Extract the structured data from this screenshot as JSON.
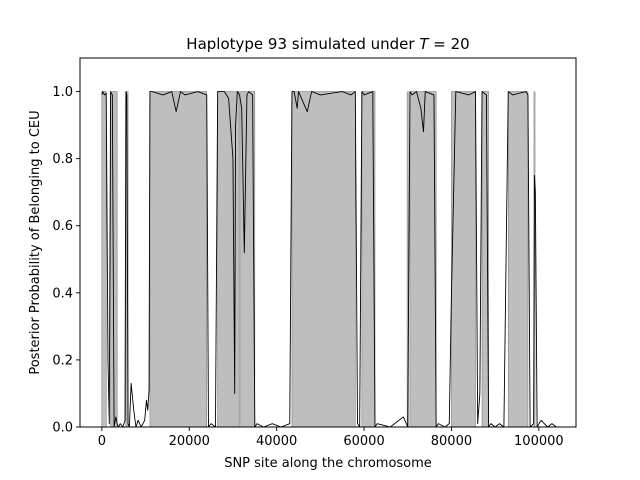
{
  "chart_data": {
    "type": "area",
    "title": "Haplotype 93 simulated under T = 20",
    "title_parts": {
      "prefix": "Haplotype 93 simulated under ",
      "italic": "T",
      "suffix": " =  20"
    },
    "xlabel": "SNP site along the chromosome",
    "ylabel": "Posterior Probability of Belonging to CEU",
    "xlim": [
      -5000,
      108500
    ],
    "ylim": [
      0.0,
      1.1
    ],
    "xticks": [
      0,
      20000,
      40000,
      60000,
      80000,
      100000
    ],
    "xtick_labels": [
      "0",
      "20000",
      "40000",
      "60000",
      "80000",
      "100000"
    ],
    "yticks": [
      0.0,
      0.2,
      0.4,
      0.6,
      0.8,
      1.0
    ],
    "ytick_labels": [
      "0.0",
      "0.2",
      "0.4",
      "0.6",
      "0.8",
      "1.0"
    ],
    "grid": false,
    "legend": "none",
    "colors": {
      "shaded_segments": "#bebebe",
      "segment_edge": "#7f7f7f",
      "posterior_line": "#000000",
      "marker_lines": "#a9a9a9"
    },
    "shaded_segments": [
      {
        "start": 0,
        "end": 1000
      },
      {
        "start": 2000,
        "end": 3500
      },
      {
        "start": 5500,
        "end": 6000
      },
      {
        "start": 11000,
        "end": 24000
      },
      {
        "start": 26500,
        "end": 35000
      },
      {
        "start": 43500,
        "end": 58000
      },
      {
        "start": 59500,
        "end": 62500
      },
      {
        "start": 70500,
        "end": 76500
      },
      {
        "start": 80000,
        "end": 85500
      },
      {
        "start": 87000,
        "end": 88500
      },
      {
        "start": 93000,
        "end": 97500
      }
    ],
    "marker_lines": [
      31500,
      70000,
      99000
    ],
    "posterior": {
      "x": [
        0,
        200,
        600,
        1000,
        1400,
        1700,
        2000,
        2400,
        2800,
        3200,
        3500,
        3800,
        4200,
        4800,
        5300,
        5500,
        5700,
        6000,
        6300,
        6700,
        7300,
        7800,
        8300,
        9000,
        9800,
        10200,
        10500,
        10800,
        11000,
        11500,
        14000,
        16000,
        17000,
        18000,
        19000,
        22000,
        24000,
        24400,
        25000,
        26000,
        26500,
        28000,
        29000,
        30000,
        30400,
        30600,
        31000,
        31500,
        32000,
        32600,
        33200,
        33600,
        34500,
        35000,
        35500,
        37000,
        39000,
        41000,
        43000,
        43500,
        44000,
        44700,
        45000,
        47000,
        48000,
        50000,
        55000,
        57000,
        58000,
        58500,
        59000,
        59500,
        60000,
        62000,
        62500,
        63000,
        66000,
        69000,
        70000,
        70500,
        71000,
        72000,
        73000,
        73600,
        74000,
        76000,
        76500,
        77000,
        78500,
        79500,
        80000,
        81000,
        84000,
        85500,
        86000,
        86500,
        87000,
        88000,
        88500,
        89000,
        90000,
        91000,
        92000,
        93000,
        94000,
        97000,
        97500,
        98000,
        98800,
        99000,
        99200,
        99600,
        100500,
        102000,
        103000,
        104000
      ],
      "y": [
        0.99,
        1.0,
        0.99,
        0.995,
        0.2,
        0.01,
        1.0,
        0.99,
        0.0,
        0.03,
        0.01,
        0.0,
        0.01,
        0.0,
        0.02,
        1.0,
        0.99,
        0.01,
        0.0,
        0.13,
        0.05,
        0.0,
        0.02,
        0.0,
        0.02,
        0.08,
        0.05,
        0.11,
        1.0,
        1.0,
        0.99,
        1.0,
        0.94,
        1.0,
        0.99,
        1.0,
        0.99,
        0.0,
        0.01,
        0.0,
        1.0,
        1.0,
        0.98,
        0.8,
        0.1,
        0.9,
        1.0,
        0.99,
        0.95,
        0.52,
        0.99,
        1.0,
        0.99,
        0.0,
        0.01,
        0.0,
        0.01,
        0.0,
        0.01,
        1.0,
        1.0,
        0.95,
        1.0,
        0.94,
        1.0,
        0.99,
        1.0,
        0.99,
        1.0,
        0.01,
        0.0,
        1.0,
        0.99,
        1.0,
        0.0,
        0.01,
        0.0,
        0.03,
        0.0,
        1.0,
        0.99,
        1.0,
        0.95,
        0.88,
        1.0,
        0.99,
        0.0,
        0.01,
        0.0,
        0.01,
        0.4,
        1.0,
        0.99,
        1.0,
        0.01,
        0.1,
        1.0,
        0.99,
        0.0,
        0.01,
        0.0,
        0.01,
        0.0,
        1.0,
        0.99,
        1.0,
        0.99,
        0.0,
        0.01,
        0.75,
        0.7,
        0.0,
        0.02,
        0.0,
        0.01,
        0.0
      ]
    }
  }
}
